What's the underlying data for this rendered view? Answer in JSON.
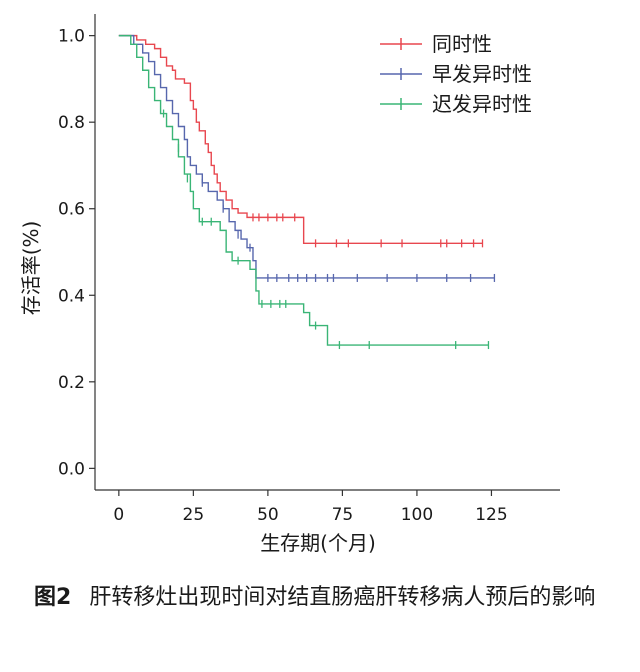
{
  "chart_data": {
    "type": "line",
    "subtype": "kaplan-meier",
    "title": "",
    "xlabel": "生存期(个月)",
    "ylabel": "存活率(%)",
    "xlim": [
      -8,
      148
    ],
    "ylim": [
      -0.05,
      1.05
    ],
    "xticks": [
      "0",
      "25",
      "50",
      "75",
      "100",
      "125"
    ],
    "xtick_values": [
      0,
      25,
      50,
      75,
      100,
      125
    ],
    "yticks": [
      "0.0",
      "0.2",
      "0.4",
      "0.6",
      "0.8",
      "1.0"
    ],
    "ytick_values": [
      0.0,
      0.2,
      0.4,
      0.6,
      0.8,
      1.0
    ],
    "legend_position": "top-right",
    "series": [
      {
        "name": "同时性",
        "color": "#e8474f",
        "steps": [
          [
            0,
            1.0
          ],
          [
            6,
            0.99
          ],
          [
            9,
            0.98
          ],
          [
            12,
            0.97
          ],
          [
            14,
            0.95
          ],
          [
            16,
            0.93
          ],
          [
            18,
            0.92
          ],
          [
            19,
            0.9
          ],
          [
            22,
            0.89
          ],
          [
            24,
            0.85
          ],
          [
            25,
            0.83
          ],
          [
            26,
            0.8
          ],
          [
            27,
            0.78
          ],
          [
            29,
            0.75
          ],
          [
            30,
            0.73
          ],
          [
            31,
            0.7
          ],
          [
            32,
            0.68
          ],
          [
            33,
            0.66
          ],
          [
            34,
            0.64
          ],
          [
            36,
            0.62
          ],
          [
            38,
            0.6
          ],
          [
            40,
            0.59
          ],
          [
            43,
            0.58
          ],
          [
            62,
            0.52
          ],
          [
            122,
            0.52
          ]
        ],
        "censored": [
          [
            45,
            0.58
          ],
          [
            47,
            0.58
          ],
          [
            50,
            0.58
          ],
          [
            53,
            0.58
          ],
          [
            55,
            0.58
          ],
          [
            59,
            0.58
          ],
          [
            66,
            0.52
          ],
          [
            73,
            0.52
          ],
          [
            77,
            0.52
          ],
          [
            88,
            0.52
          ],
          [
            95,
            0.52
          ],
          [
            108,
            0.52
          ],
          [
            110,
            0.52
          ],
          [
            115,
            0.52
          ],
          [
            119,
            0.52
          ],
          [
            122,
            0.52
          ]
        ]
      },
      {
        "name": "早发异时性",
        "color": "#5767ad",
        "steps": [
          [
            0,
            1.0
          ],
          [
            5,
            0.98
          ],
          [
            8,
            0.96
          ],
          [
            10,
            0.94
          ],
          [
            12,
            0.91
          ],
          [
            14,
            0.88
          ],
          [
            16,
            0.85
          ],
          [
            18,
            0.82
          ],
          [
            20,
            0.79
          ],
          [
            22,
            0.76
          ],
          [
            23,
            0.72
          ],
          [
            24,
            0.7
          ],
          [
            26,
            0.68
          ],
          [
            28,
            0.66
          ],
          [
            30,
            0.64
          ],
          [
            33,
            0.62
          ],
          [
            35,
            0.6
          ],
          [
            37,
            0.57
          ],
          [
            39,
            0.55
          ],
          [
            41,
            0.53
          ],
          [
            43,
            0.51
          ],
          [
            45,
            0.48
          ],
          [
            46,
            0.44
          ],
          [
            126,
            0.44
          ]
        ],
        "censored": [
          [
            28,
            0.66
          ],
          [
            35,
            0.6
          ],
          [
            40,
            0.54
          ],
          [
            44,
            0.51
          ],
          [
            50,
            0.44
          ],
          [
            53,
            0.44
          ],
          [
            57,
            0.44
          ],
          [
            60,
            0.44
          ],
          [
            63,
            0.44
          ],
          [
            66,
            0.44
          ],
          [
            70,
            0.44
          ],
          [
            72,
            0.44
          ],
          [
            80,
            0.44
          ],
          [
            90,
            0.44
          ],
          [
            100,
            0.44
          ],
          [
            110,
            0.44
          ],
          [
            118,
            0.44
          ],
          [
            126,
            0.44
          ]
        ]
      },
      {
        "name": "迟发异时性",
        "color": "#3ab576",
        "steps": [
          [
            0,
            1.0
          ],
          [
            4,
            0.98
          ],
          [
            6,
            0.95
          ],
          [
            8,
            0.92
          ],
          [
            10,
            0.88
          ],
          [
            12,
            0.85
          ],
          [
            14,
            0.82
          ],
          [
            16,
            0.79
          ],
          [
            18,
            0.76
          ],
          [
            20,
            0.72
          ],
          [
            22,
            0.68
          ],
          [
            24,
            0.64
          ],
          [
            25,
            0.6
          ],
          [
            27,
            0.57
          ],
          [
            34,
            0.55
          ],
          [
            36,
            0.5
          ],
          [
            38,
            0.48
          ],
          [
            44,
            0.46
          ],
          [
            46,
            0.41
          ],
          [
            47,
            0.38
          ],
          [
            62,
            0.36
          ],
          [
            64,
            0.33
          ],
          [
            70,
            0.285
          ],
          [
            124,
            0.285
          ]
        ],
        "censored": [
          [
            15,
            0.82
          ],
          [
            20,
            0.74
          ],
          [
            23,
            0.67
          ],
          [
            28,
            0.57
          ],
          [
            31,
            0.57
          ],
          [
            40,
            0.48
          ],
          [
            48,
            0.38
          ],
          [
            51,
            0.38
          ],
          [
            54,
            0.38
          ],
          [
            56,
            0.38
          ],
          [
            66,
            0.33
          ],
          [
            74,
            0.285
          ],
          [
            84,
            0.285
          ],
          [
            113,
            0.285
          ],
          [
            124,
            0.285
          ]
        ]
      }
    ]
  },
  "caption": {
    "figure_number": "图2",
    "text": "肝转移灶出现时间对结直肠癌肝转移病人预后的影响"
  }
}
